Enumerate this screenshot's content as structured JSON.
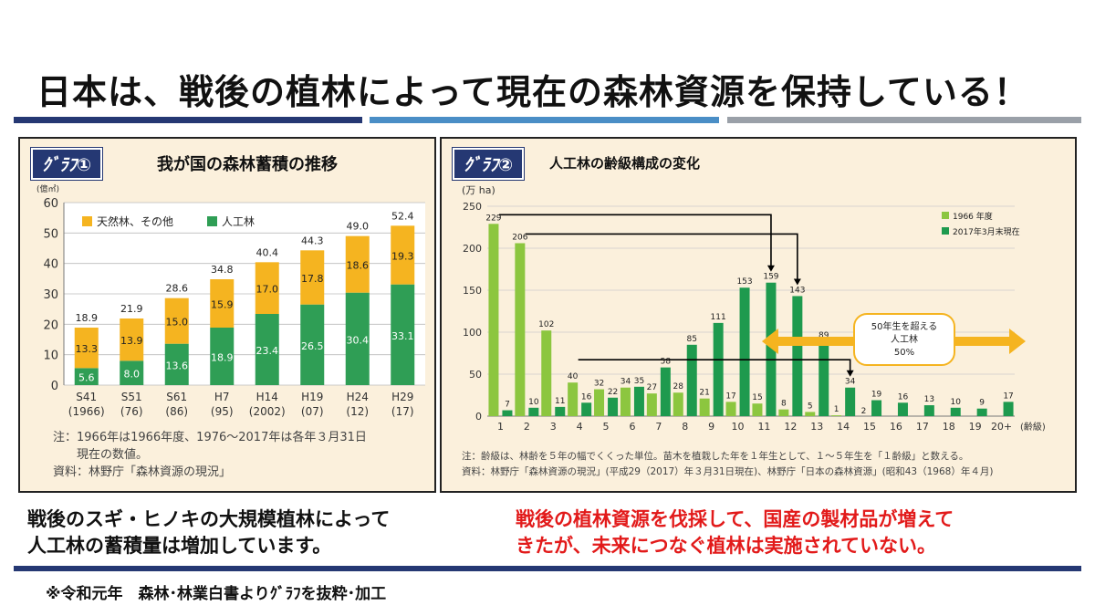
{
  "header": {
    "title": "日本は、戦後の植林によって現在の森林資源を保持している！"
  },
  "colors": {
    "nav": "#253873",
    "blue": "#4a8ec6",
    "gray": "#9aa0a8",
    "natural": "#f5b420",
    "planted1": "#2f9e55",
    "g1966": "#8cc63f",
    "g2017": "#1e9a4e",
    "arrow": "#f5b420"
  },
  "panel1": {
    "tag": "ｸﾞﾗﾌ①",
    "title": "我が国の森林蓄積の推移",
    "notes": [
      "注：1966年は1966年度、1976〜2017年は各年３月31日",
      "　　現在の数値。",
      "資料：林野庁「森林資源の現況」"
    ]
  },
  "panel2": {
    "tag": "ｸﾞﾗﾌ②",
    "title": "人工林の齢級構成の変化",
    "annotation": [
      "50年生を超える",
      "人工林",
      "50%"
    ],
    "notes": [
      "注：齢級は、林齢を５年の幅でくくった単位。苗木を植栽した年を１年生として、１〜５年生を「１齢級」と数える。",
      "資料：林野庁「森林資源の現況」(平成29（2017）年３月31日現在)、林野庁「日本の森林資源」(昭和43（1968）年４月)"
    ]
  },
  "captions": {
    "left": [
      "戦後のスギ・ヒノキの大規模植林によって",
      "人工林の蓄積量は増加しています。"
    ],
    "right": [
      "戦後の植林資源を伐採して、国産の製材品が増えて",
      "きたが、未来につなぐ植林は実施されていない。"
    ]
  },
  "source": "※令和元年　森林･林業白書よりｸﾞﾗﾌを抜粋･加工",
  "chart_data": [
    {
      "type": "bar",
      "title": "我が国の森林蓄積の推移",
      "unit_label": "(億㎥)",
      "categories": [
        "S41",
        "S51",
        "S61",
        "H7",
        "H14",
        "H19",
        "H24",
        "H29"
      ],
      "category_sub": [
        "(1966)",
        "(76)",
        "(86)",
        "(95)",
        "(2002)",
        "(07)",
        "(12)",
        "(17)"
      ],
      "stacked": true,
      "series": [
        {
          "name": "人工林",
          "values": [
            5.6,
            8.0,
            13.6,
            18.9,
            23.4,
            26.5,
            30.4,
            33.1
          ]
        },
        {
          "name": "天然林、その他",
          "values": [
            13.3,
            13.9,
            15.0,
            15.9,
            17.0,
            17.8,
            18.6,
            19.3
          ]
        }
      ],
      "totals": [
        18.9,
        21.9,
        28.6,
        34.8,
        40.4,
        44.3,
        49.0,
        52.4
      ],
      "ylim": [
        0,
        60
      ],
      "yticks": [
        0,
        10,
        20,
        30,
        40,
        50,
        60
      ],
      "legend": "top-left",
      "grid": true
    },
    {
      "type": "bar",
      "title": "人工林の齢級構成の変化",
      "unit_label": "(万 ha)",
      "xlabel": "(齢級)",
      "categories": [
        "1",
        "2",
        "3",
        "4",
        "5",
        "6",
        "7",
        "8",
        "9",
        "10",
        "11",
        "12",
        "13",
        "14",
        "15",
        "16",
        "17",
        "18",
        "19",
        "20+"
      ],
      "series": [
        {
          "name": "1966 年度",
          "values": [
            229,
            206,
            102,
            40,
            32,
            34,
            27,
            28,
            21,
            17,
            15,
            8,
            5,
            1,
            null,
            null,
            null,
            null,
            null,
            null
          ]
        },
        {
          "name": "2017年3月末現在",
          "values": [
            7,
            10,
            11,
            16,
            22,
            35,
            58,
            85,
            111,
            153,
            159,
            143,
            89,
            34,
            19,
            16,
            13,
            10,
            9,
            17
          ]
        }
      ],
      "extra_label": {
        "category": "15",
        "text": "2"
      },
      "ylim": [
        0,
        250
      ],
      "yticks": [
        0,
        50,
        100,
        150,
        200,
        250
      ],
      "legend": "top-right",
      "grid": true
    }
  ]
}
